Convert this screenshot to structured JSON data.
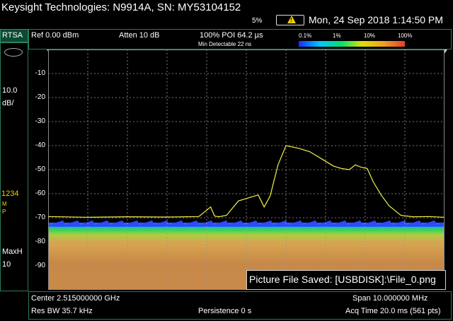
{
  "header": {
    "title": "Keysight Technologies: N9914A, SN: MY53104152",
    "battery_percent": "5%",
    "datetime": "Mon, 24 Sep 2018 1:14:50 PM"
  },
  "mode": "RTSA",
  "left_panel": {
    "scale_value": "10.0",
    "scale_unit": "dB/",
    "trace_numbers": "1234",
    "trace_m": "M",
    "trace_p": "P",
    "detector": "MaxH",
    "detector_count": "10"
  },
  "measurement_bar": {
    "ref_level": "Ref 0.00 dBm",
    "attenuation": "Atten 10 dB",
    "poi": "100% POI 64.2 µs",
    "min_detectable": "Min Detectable 22 ns",
    "density_scale": [
      "0.1%",
      "1%",
      "10%",
      "100%"
    ]
  },
  "graph": {
    "y_tick_labels": [
      "-10",
      "-20",
      "-30",
      "-40",
      "-50",
      "-60",
      "-70",
      "-80",
      "-90"
    ]
  },
  "footer": {
    "center": "Center 2.515000000 GHz",
    "res_bw": "Res BW 35.7 kHz",
    "persistence": "Persistence 0  s",
    "span": "Span 10.000000 MHz",
    "acq_time": "Acq Time 20.0 ms (561 pts)"
  },
  "toast": {
    "message": "Picture File Saved: [USBDISK]:\\File_0.png"
  },
  "colors": {
    "trace": "#f2f24a",
    "border": "#2a7a55",
    "grid": "#9a9a9a"
  },
  "chart_data": {
    "type": "line",
    "title": "",
    "xlabel": "",
    "ylabel": "",
    "ylim": [
      -100,
      0
    ],
    "x_center_ghz": 2.515,
    "x_span_mhz": 10,
    "series": [
      {
        "x_mhz": [
          -5.0,
          -4.0,
          -3.0,
          -2.0,
          -1.2,
          -0.9,
          -0.8,
          -0.7,
          -0.5,
          -0.2,
          0.0,
          0.3,
          0.45,
          0.6,
          0.8,
          1.0,
          1.3,
          1.6,
          1.9,
          2.2,
          2.4,
          2.6,
          2.75,
          2.9,
          3.05,
          3.2,
          3.4,
          3.6,
          3.9,
          4.2,
          4.6,
          5.0
        ],
        "values": [
          -69.5,
          -69.8,
          -69.6,
          -69.7,
          -69.5,
          -65.5,
          -69.3,
          -69.6,
          -69.0,
          -63.0,
          -62.0,
          -60.5,
          -65.5,
          -61.0,
          -48.0,
          -40.0,
          -41.0,
          -42.5,
          -45.5,
          -48.5,
          -49.5,
          -50.0,
          -48.0,
          -49.0,
          -49.5,
          -55.0,
          -60.5,
          -65.0,
          -69.0,
          -69.6,
          -69.5,
          -69.8
        ]
      }
    ],
    "density_band_db": [
      -72,
      -100
    ]
  }
}
